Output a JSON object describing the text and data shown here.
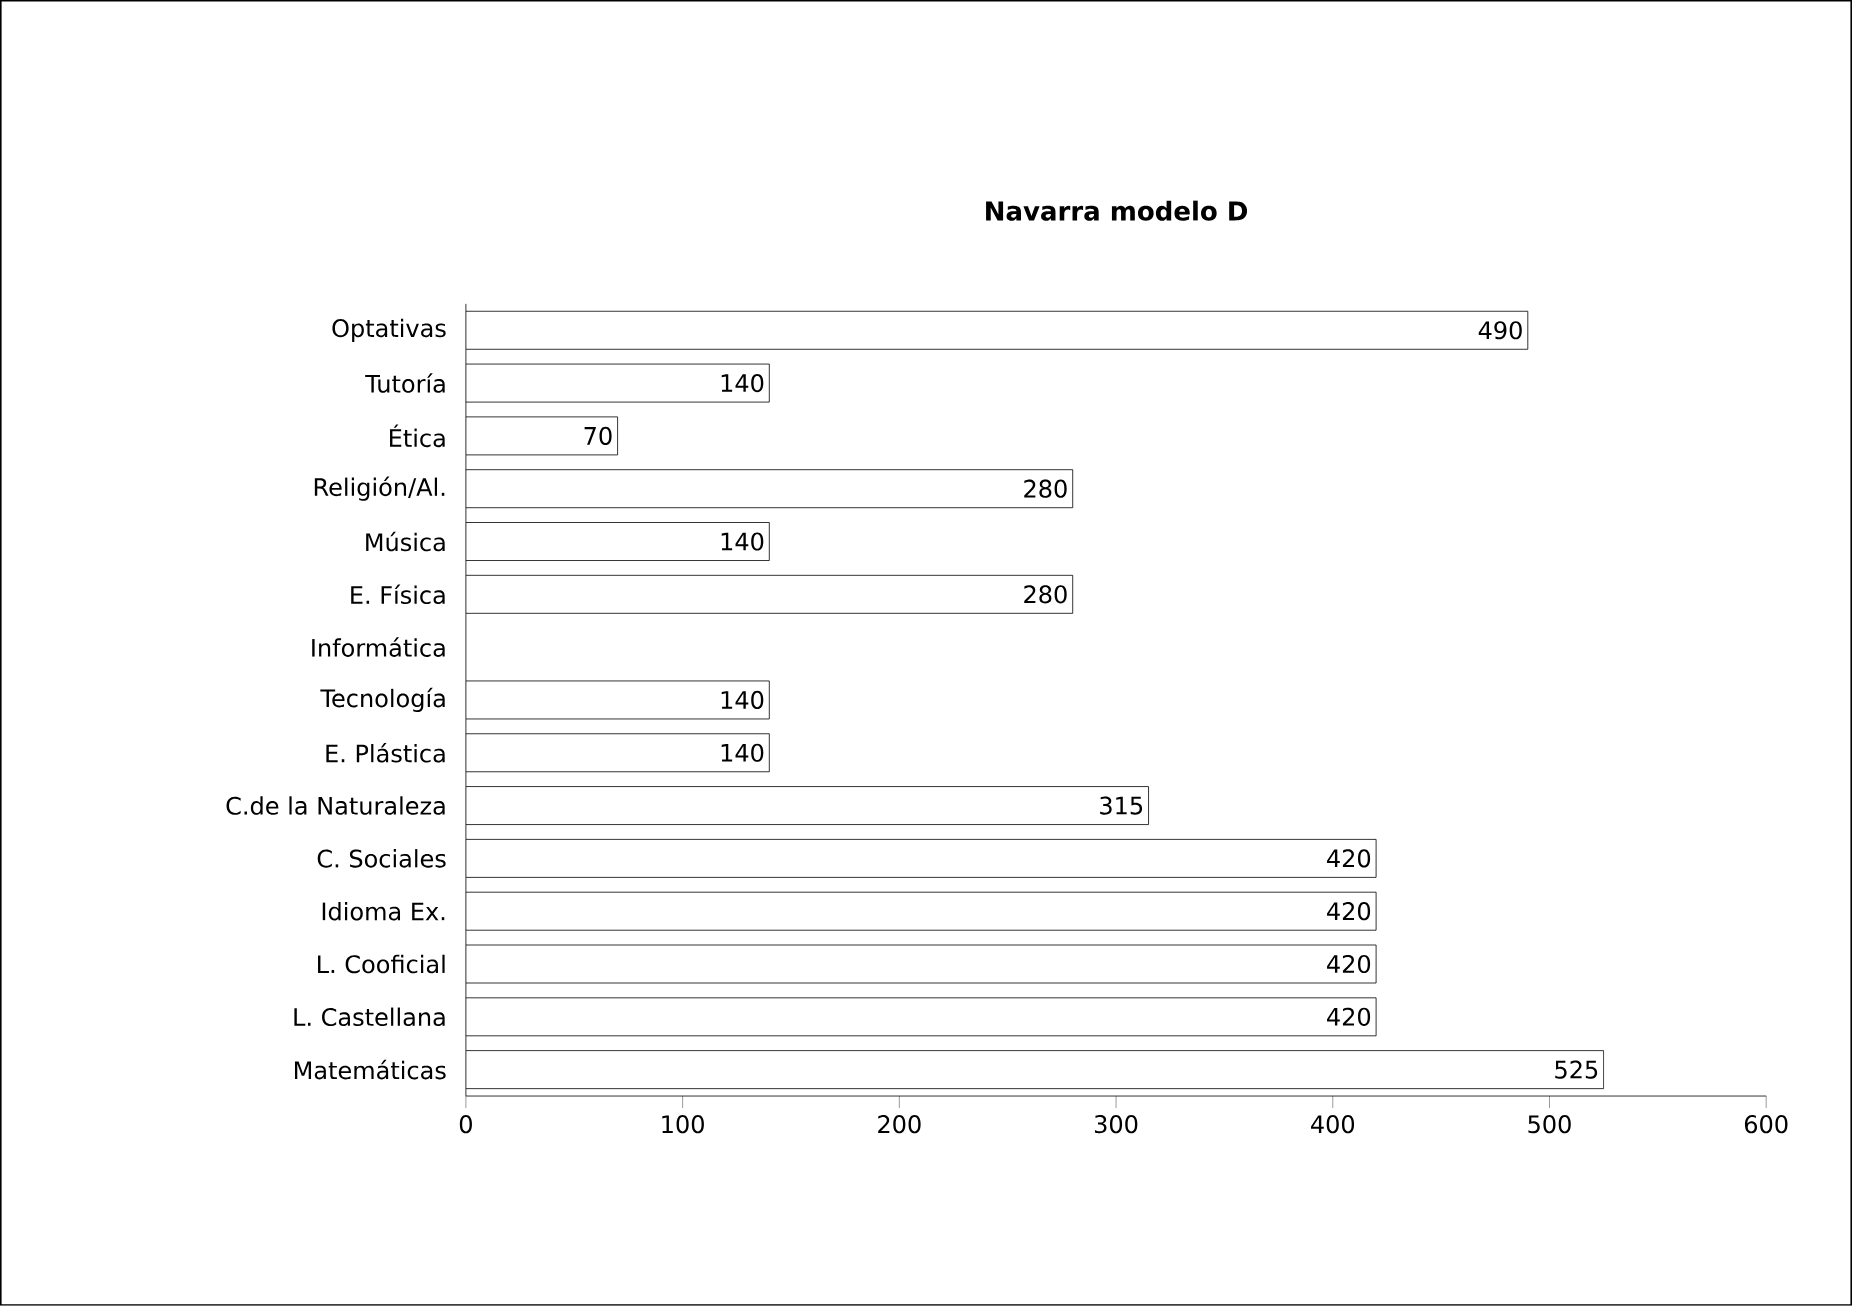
{
  "chart_data": {
    "type": "bar",
    "orientation": "horizontal",
    "title": "Navarra modelo D",
    "categories": [
      "Optativas",
      "Tutoría",
      "Ética",
      "Religión/Al.",
      "Música",
      "E. Física",
      "Informática",
      "Tecnología",
      "E. Plástica",
      "C.de la Naturaleza",
      "C. Sociales",
      "Idioma Ex.",
      "L. Cooficial",
      "L. Castellana",
      "Matemáticas"
    ],
    "values": [
      490,
      140,
      70,
      280,
      140,
      280,
      null,
      140,
      140,
      315,
      420,
      420,
      420,
      420,
      525
    ],
    "color": "#ffffff",
    "xlim": [
      0,
      600
    ],
    "xticks": [
      0,
      100,
      200,
      300,
      400,
      500,
      600
    ],
    "data_labels": true,
    "grid": false
  }
}
